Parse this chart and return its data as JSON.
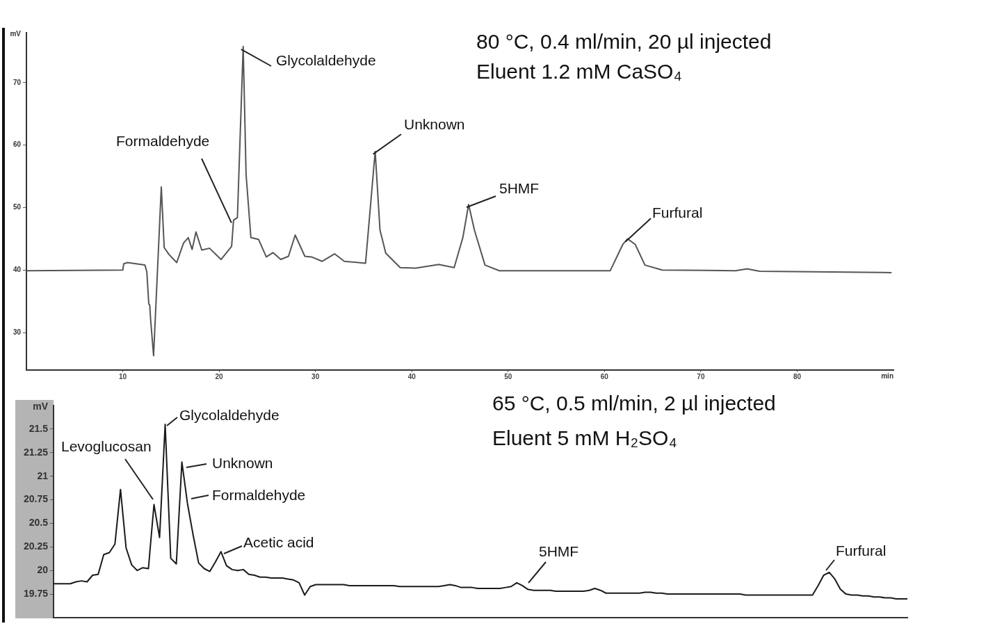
{
  "chart_data": [
    {
      "type": "line",
      "title": "80 °C, 0.4 ml/min, 20 µl injected",
      "subtitle": "Eluent 1.2 mM CaSO₄",
      "xlabel": "min",
      "ylabel": "mV",
      "xlim": [
        0,
        90
      ],
      "xticks": [
        10,
        20,
        30,
        40,
        50,
        60,
        70,
        80
      ],
      "ylim": [
        24,
        78
      ],
      "yticks": [
        30,
        40,
        50,
        60,
        70
      ],
      "line_style": "solid",
      "series": [
        {
          "color": "#555555",
          "x": [
            0,
            10,
            10.1,
            10.5,
            12.3,
            12.5,
            12.7,
            12.8,
            12.9,
            13.2,
            14.0,
            14.3,
            14.8,
            15.6,
            16.3,
            16.8,
            17.2,
            17.6,
            18.2,
            19.0,
            20.2,
            21.3,
            21.5,
            21.9,
            22.5,
            22.8,
            23.3,
            24.1,
            24.9,
            25.6,
            26.4,
            27.2,
            27.9,
            28.9,
            29.6,
            30.7,
            32.0,
            33.0,
            35.2,
            36.2,
            36.7,
            37.3,
            38.8,
            40.4,
            42.8,
            44.4,
            45.3,
            45.9,
            46.5,
            47.6,
            49.1,
            60.6,
            61.9,
            62.4,
            63.2,
            64.2,
            66.0,
            73.6,
            74.8,
            76.1,
            89.8
          ],
          "values": [
            39.9,
            40,
            41,
            41.2,
            40.8,
            39.7,
            34.6,
            34.4,
            31.9,
            26.3,
            53.3,
            43.6,
            42.5,
            41.2,
            44.3,
            45.2,
            43.3,
            46.1,
            43.2,
            43.5,
            41.7,
            43.8,
            48.0,
            48.4,
            75.8,
            55.3,
            45.2,
            44.9,
            42.1,
            42.8,
            41.7,
            42.2,
            45.6,
            42.2,
            42.1,
            41.4,
            42.6,
            41.4,
            41.1,
            59.0,
            46.4,
            42.7,
            40.4,
            40.3,
            40.9,
            40.4,
            45.2,
            50.5,
            46.4,
            40.8,
            39.9,
            39.9,
            44.1,
            45.0,
            44.1,
            40.8,
            40,
            39.9,
            40.2,
            39.8,
            39.6
          ]
        }
      ],
      "annotations": [
        {
          "text": "Formaldehyde",
          "x": 21.5,
          "y": 48.0
        },
        {
          "text": "Glycolaldehyde",
          "x": 22.5,
          "y": 75.8
        },
        {
          "text": "Unknown",
          "x": 36.2,
          "y": 59.0
        },
        {
          "text": "5HMF",
          "x": 45.9,
          "y": 50.5
        },
        {
          "text": "Furfural",
          "x": 62.4,
          "y": 45.0
        }
      ]
    },
    {
      "type": "line",
      "title": "65 °C, 0.5 ml/min, 2 µl injected",
      "subtitle": "Eluent 5 mM H₂SO₄",
      "ylabel": "mV",
      "tick_labels": "y",
      "ylim": [
        19.5,
        21.75
      ],
      "yticks": [
        19.75,
        20,
        20.25,
        20.5,
        20.75,
        21,
        21.25,
        21.5
      ],
      "line_style": "solid",
      "categories": [
        null,
        null,
        null,
        null,
        null,
        null,
        null,
        null,
        null,
        null,
        null,
        null,
        null,
        null,
        null,
        null,
        null,
        null,
        null,
        null,
        null,
        null,
        null,
        null,
        null,
        null,
        null,
        null,
        null,
        null,
        null,
        null,
        null,
        null,
        null,
        null,
        null,
        null,
        null,
        null,
        null,
        null,
        null,
        null,
        null,
        null,
        null,
        null,
        null,
        null,
        null,
        null,
        null,
        null,
        null,
        null,
        null,
        null,
        null,
        null,
        null,
        null,
        null,
        null,
        null,
        null,
        null,
        null,
        null,
        null,
        null,
        null,
        null,
        null,
        null,
        null,
        null,
        null,
        null,
        null,
        null,
        null,
        null,
        null,
        null,
        null,
        null,
        null,
        null,
        null,
        null,
        null,
        null,
        null,
        null,
        null,
        null,
        null,
        null,
        null,
        null,
        null,
        null,
        null,
        null,
        null,
        null,
        null,
        null,
        null,
        null,
        null,
        null,
        null,
        null,
        null,
        null,
        null,
        null,
        null,
        null,
        null,
        null,
        null,
        null,
        null,
        null,
        null,
        null,
        null,
        null,
        null,
        null,
        null,
        null,
        null,
        null,
        null,
        null,
        null,
        null,
        null,
        null,
        null,
        null,
        null,
        null,
        null,
        null,
        null,
        null,
        null,
        null,
        null
      ],
      "series": [
        {
          "color": "#1a1a1a",
          "values": [
            19.86,
            19.86,
            19.86,
            19.86,
            19.88,
            19.89,
            19.88,
            19.95,
            19.96,
            20.17,
            20.19,
            20.28,
            20.86,
            20.24,
            20.06,
            20.0,
            20.03,
            20.02,
            20.7,
            20.35,
            21.55,
            20.13,
            20.07,
            21.15,
            20.71,
            20.38,
            20.08,
            20.02,
            19.99,
            20.09,
            20.2,
            20.05,
            20.01,
            20.0,
            20.01,
            19.96,
            19.95,
            19.93,
            19.93,
            19.92,
            19.92,
            19.92,
            19.91,
            19.9,
            19.87,
            19.74,
            19.83,
            19.85,
            19.85,
            19.85,
            19.85,
            19.85,
            19.85,
            19.84,
            19.84,
            19.84,
            19.84,
            19.84,
            19.84,
            19.84,
            19.84,
            19.84,
            19.83,
            19.83,
            19.83,
            19.83,
            19.83,
            19.83,
            19.83,
            19.83,
            19.84,
            19.85,
            19.84,
            19.82,
            19.82,
            19.82,
            19.81,
            19.81,
            19.81,
            19.81,
            19.81,
            19.82,
            19.83,
            19.87,
            19.84,
            19.8,
            19.79,
            19.79,
            19.79,
            19.79,
            19.78,
            19.78,
            19.78,
            19.78,
            19.78,
            19.78,
            19.79,
            19.81,
            19.79,
            19.76,
            19.76,
            19.76,
            19.76,
            19.76,
            19.76,
            19.76,
            19.77,
            19.77,
            19.76,
            19.76,
            19.75,
            19.75,
            19.75,
            19.75,
            19.75,
            19.75,
            19.75,
            19.75,
            19.75,
            19.75,
            19.75,
            19.75,
            19.75,
            19.75,
            19.74,
            19.74,
            19.74,
            19.74,
            19.74,
            19.74,
            19.74,
            19.74,
            19.74,
            19.74,
            19.74,
            19.74,
            19.74,
            19.84,
            19.95,
            19.98,
            19.91,
            19.8,
            19.75,
            19.74,
            19.74,
            19.73,
            19.73,
            19.72,
            19.72,
            19.71,
            19.71,
            19.7,
            19.7,
            19.7
          ]
        }
      ],
      "annotations": [
        "Levoglucosan",
        "Glycolaldehyde",
        "Unknown",
        "Formaldehyde",
        "Acetic acid",
        "5HMF",
        "Furfural"
      ]
    }
  ]
}
